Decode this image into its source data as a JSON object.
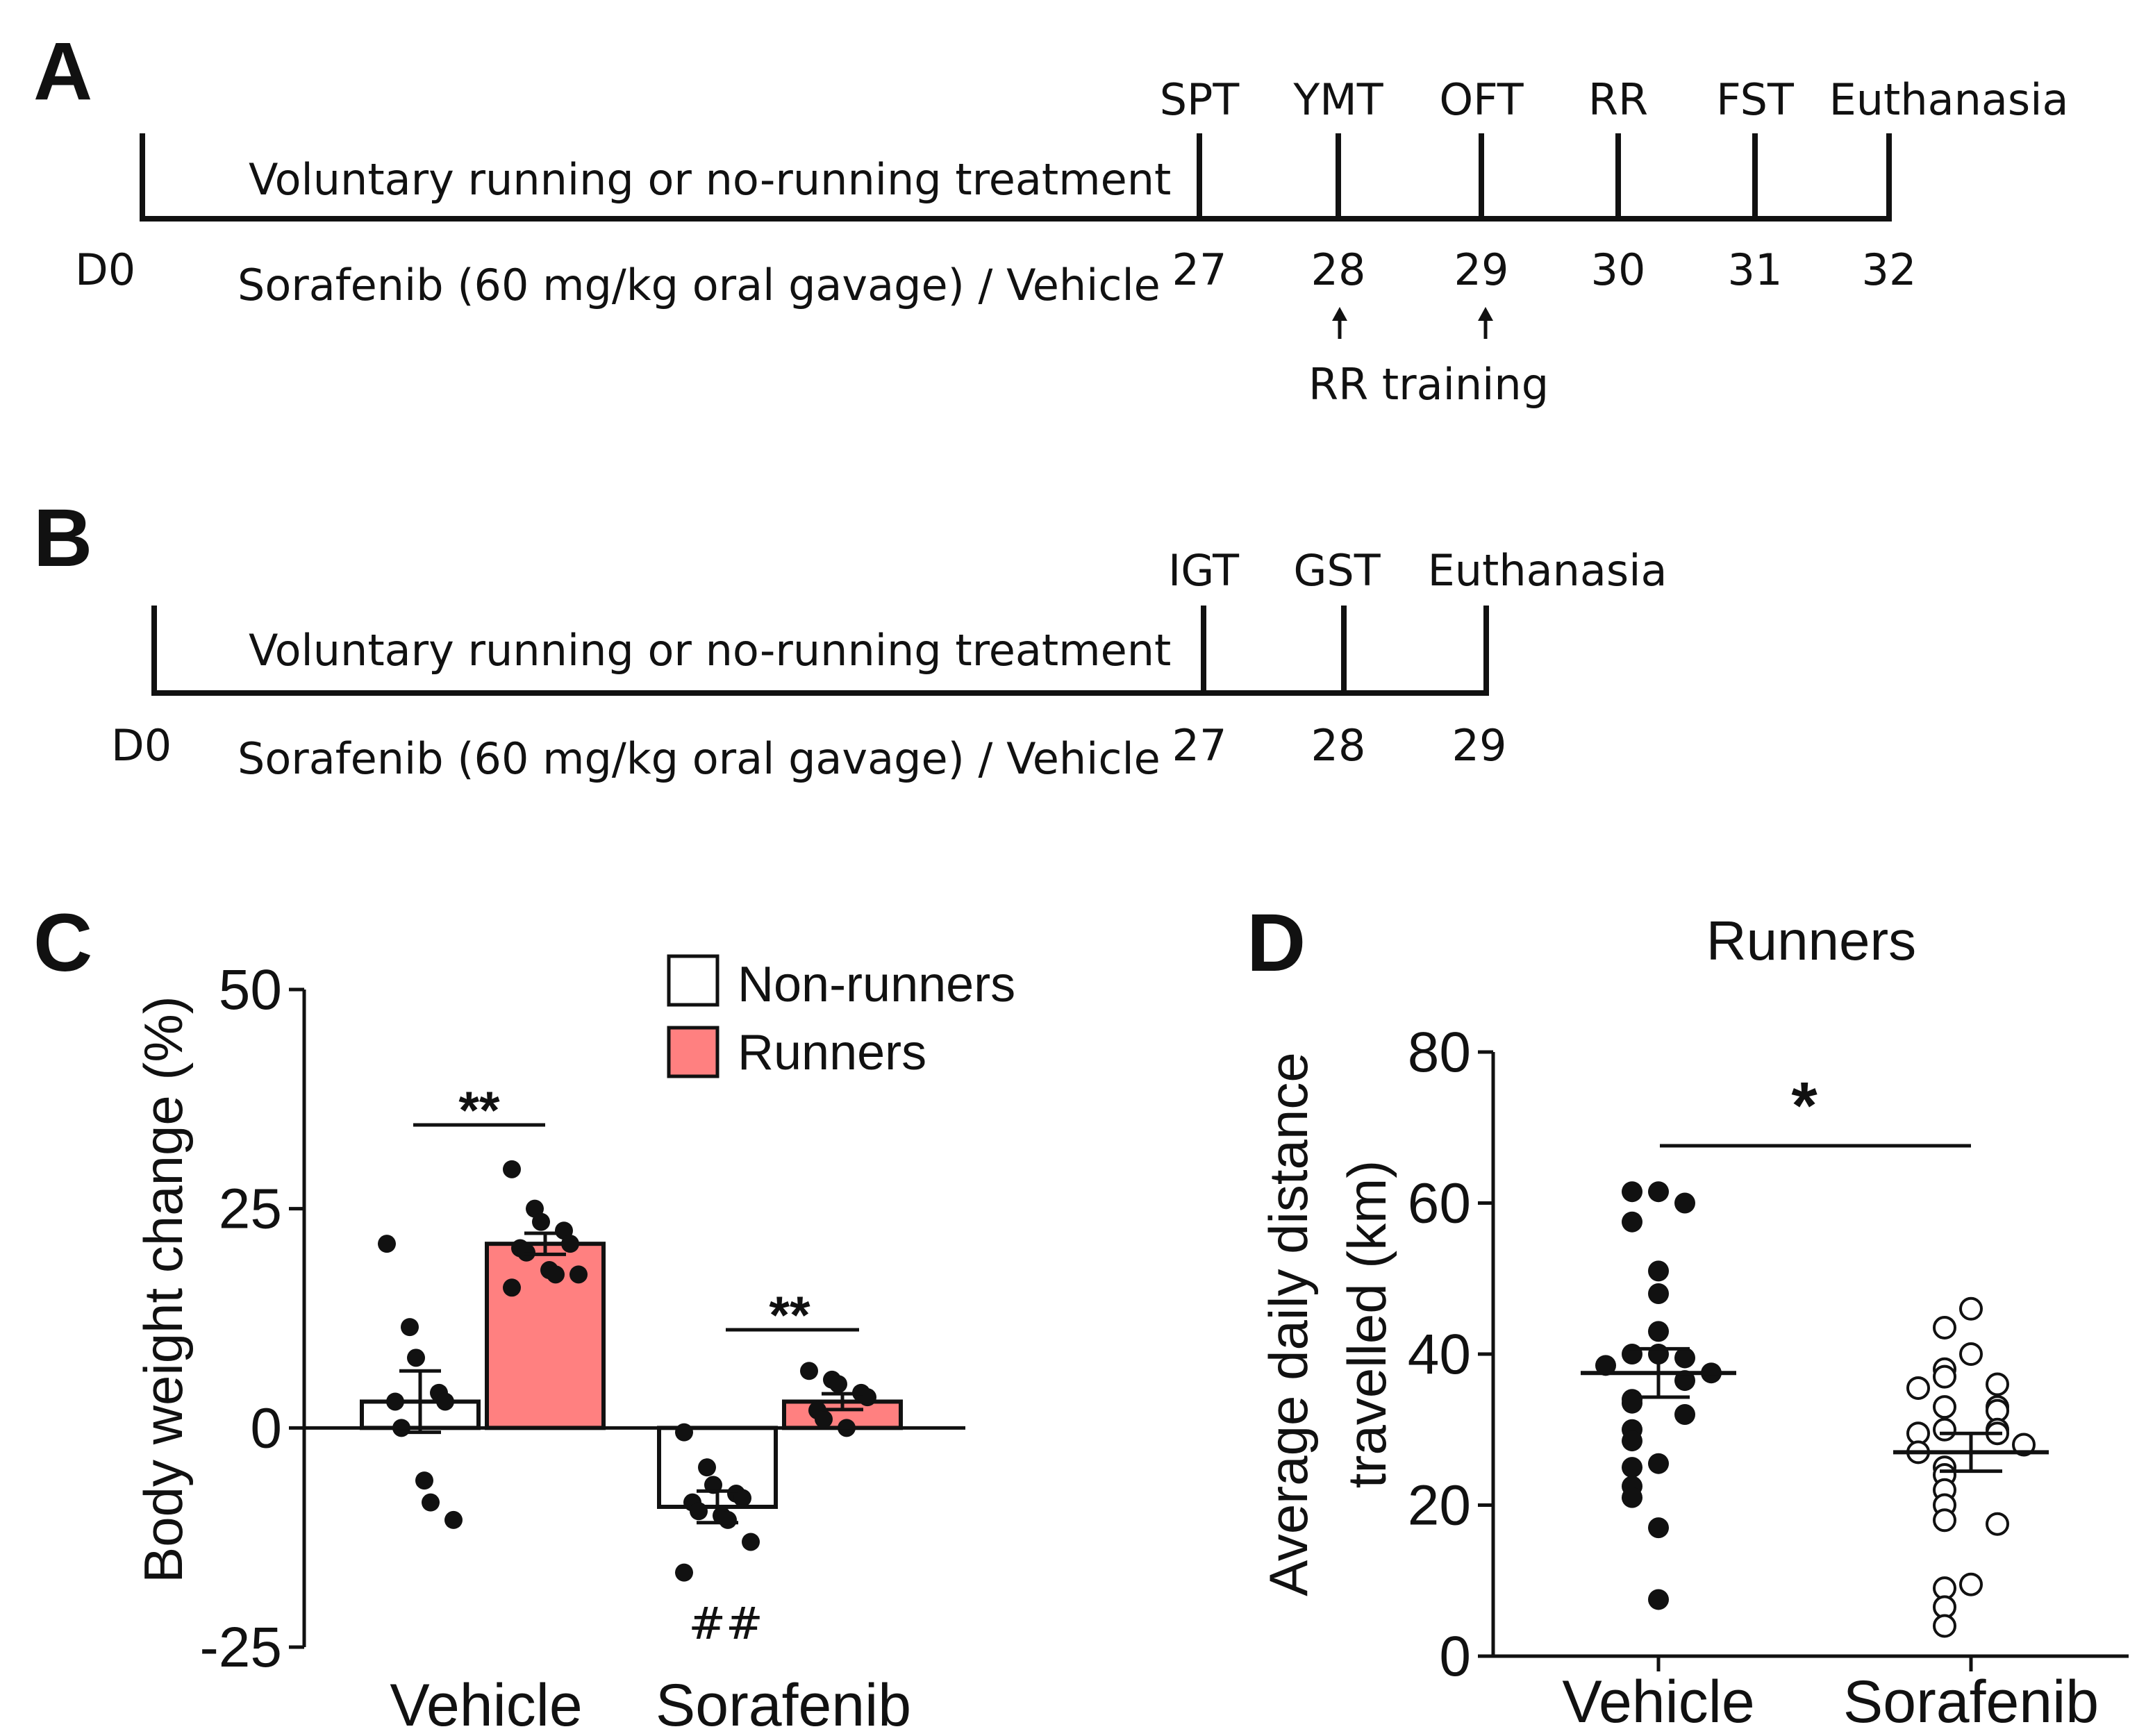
{
  "panels": {
    "a": {
      "letter": "A",
      "treatment_label": "Voluntary running or no-running treatment",
      "drug_label": "Sorafenib (60 mg/kg oral gavage) / Vehicle",
      "start_label": "D0",
      "events": [
        {
          "name": "SPT",
          "day": "27"
        },
        {
          "name": "YMT",
          "day": "28"
        },
        {
          "name": "OFT",
          "day": "29"
        },
        {
          "name": "RR",
          "day": "30"
        },
        {
          "name": "FST",
          "day": "31"
        },
        {
          "name": "Euthanasia",
          "day": "32"
        }
      ],
      "training_label": "RR training",
      "training_days": [
        "28",
        "29"
      ]
    },
    "b": {
      "letter": "B",
      "treatment_label": "Voluntary running or no-running treatment",
      "drug_label": "Sorafenib (60 mg/kg oral gavage) / Vehicle",
      "start_label": "D0",
      "events": [
        {
          "name": "IGT",
          "day": "27"
        },
        {
          "name": "GST",
          "day": "28"
        },
        {
          "name": "Euthanasia",
          "day": "29"
        }
      ]
    },
    "c": {
      "letter": "C"
    },
    "d": {
      "letter": "D"
    }
  },
  "colors": {
    "runners_fill": "#ff8080",
    "non_runners_fill": "#ffffff",
    "ink": "#111111"
  },
  "chart_data": [
    {
      "id": "C",
      "type": "bar",
      "title": "",
      "xlabel": "",
      "ylabel": "Body weight change (%)",
      "ylim": [
        -25,
        50
      ],
      "yticks": [
        -25,
        0,
        25,
        50
      ],
      "ytick_labels": [
        "-25",
        "0",
        "25",
        "50"
      ],
      "categories": [
        "Vehicle",
        "Sorafenib"
      ],
      "legend_position": "top-right",
      "series": [
        {
          "name": "Non-runners",
          "color": "#ffffff",
          "values": [
            3,
            -9
          ],
          "sem": [
            3.5,
            1.8
          ],
          "points": [
            [
              21,
              11.5,
              8,
              4,
              3,
              3,
              0,
              -6,
              -8.5,
              -10.5
            ],
            [
              -0.5,
              -4.5,
              -6.5,
              -7.5,
              -8,
              -8.5,
              -9.5,
              -10,
              -10.5,
              -13,
              -16.5
            ]
          ]
        },
        {
          "name": "Runners",
          "color": "#ff8080",
          "values": [
            21,
            3
          ],
          "sem": [
            1.2,
            0.9
          ],
          "points": [
            [
              29.5,
              25,
              23.5,
              22.5,
              21,
              20.5,
              20,
              18,
              17.5,
              17.5,
              16
            ],
            [
              6.5,
              5.5,
              5,
              4,
              3.5,
              2,
              1,
              0
            ]
          ]
        }
      ],
      "annotations": [
        {
          "text": "**",
          "group": "Vehicle",
          "type": "comparison"
        },
        {
          "text": "**",
          "group": "Sorafenib",
          "type": "comparison"
        },
        {
          "text": "##",
          "group": "Sorafenib",
          "series": "Non-runners",
          "type": "vs-vehicle"
        }
      ]
    },
    {
      "id": "D",
      "type": "scatter",
      "title": "Runners",
      "xlabel": "",
      "ylabel": [
        "Average daily distance",
        "travelled (km)"
      ],
      "ylim": [
        0,
        80
      ],
      "yticks": [
        0,
        20,
        40,
        60,
        80
      ],
      "ytick_labels": [
        "0",
        "20",
        "40",
        "60",
        "80"
      ],
      "categories": [
        "Vehicle",
        "Sorafenib"
      ],
      "series": [
        {
          "name": "Vehicle",
          "filled": true,
          "mean": 37.5,
          "sem": 3.2,
          "points": [
            61.5,
            61.5,
            60,
            57.5,
            51,
            48,
            43,
            40,
            40,
            39.5,
            38.5,
            37.5,
            36.5,
            34,
            33.5,
            32,
            30,
            28.5,
            25.5,
            25,
            22.5,
            21,
            17,
            7.5
          ]
        },
        {
          "name": "Sorafenib",
          "filled": false,
          "mean": 27,
          "sem": 2.5,
          "points": [
            46,
            43.5,
            40,
            38,
            37,
            36,
            35.5,
            33,
            33,
            32.5,
            30,
            30,
            29.5,
            29.5,
            28,
            27,
            25,
            24,
            22,
            20,
            18,
            17.5,
            9.5,
            9,
            6.5,
            4
          ]
        }
      ],
      "annotations": [
        {
          "text": "*",
          "type": "comparison",
          "between": [
            "Vehicle",
            "Sorafenib"
          ]
        }
      ]
    }
  ]
}
